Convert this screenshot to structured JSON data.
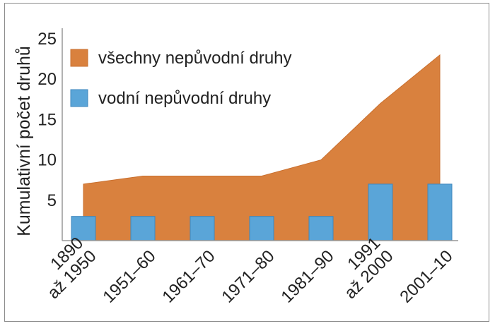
{
  "chart_data": {
    "type": "area+bar",
    "title": "",
    "ylabel": "Kumulativní počet druhů",
    "xlabel": "",
    "ylim": [
      0,
      25
    ],
    "yticks": [
      5,
      10,
      15,
      20,
      25
    ],
    "grid": false,
    "legend_position": "top-left",
    "categories": [
      [
        "1890",
        "až 1950"
      ],
      [
        "1951–60"
      ],
      [
        "1961–70"
      ],
      [
        "1971–80"
      ],
      [
        "1981–90"
      ],
      [
        "1991",
        "až 2000"
      ],
      [
        "2001–10"
      ]
    ],
    "series": [
      {
        "name": "všechny nepůvodní druhy",
        "type": "area",
        "color": "#d9813e",
        "values": [
          7,
          8,
          8,
          8,
          10,
          17,
          23
        ]
      },
      {
        "name": "vodní nepůvodní druhy",
        "type": "bar",
        "color": "#5aa5d8",
        "values": [
          3,
          3,
          3,
          3,
          3,
          7,
          7
        ]
      }
    ]
  }
}
